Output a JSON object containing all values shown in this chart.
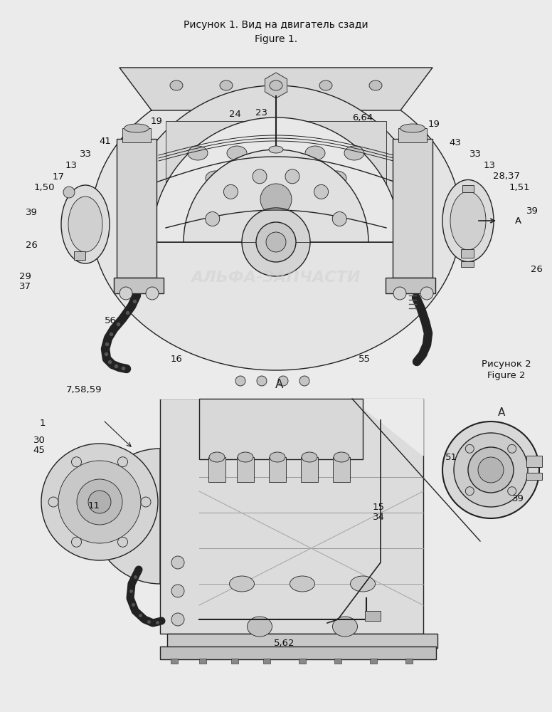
{
  "title_line1": "Рисунок 1. Вид на двигатель сзади",
  "title_line2": "Figure 1.",
  "fig2_label1": "Рисунок 2",
  "fig2_label2": "Figure 2",
  "background_color": "#ebebeb",
  "fig_width": 7.76,
  "fig_height": 10.0,
  "dpi": 100,
  "watermark": "АЛЬФА-ЗАПЧАСТИ",
  "line_color": "#222222",
  "fill_light": "#e8e8e8",
  "fill_mid": "#d0d0d0",
  "fill_dark": "#b8b8b8"
}
